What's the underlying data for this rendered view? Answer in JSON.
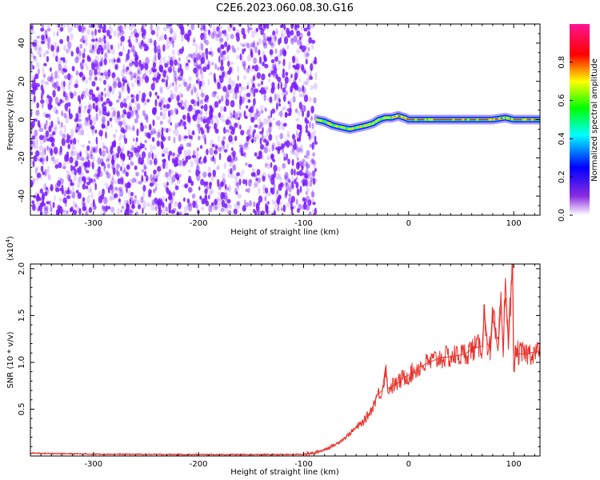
{
  "figure_title": "C2E6.2023.060.08.30.G16",
  "colors": {
    "spectrogram_points": "#7a1bff",
    "snr_line": "#e8332d",
    "axis": "#000000",
    "background": "#ffffff"
  },
  "chart_data": [
    {
      "type": "heatmap",
      "title": "C2E6.2023.060.08.30.G16",
      "xlabel": "Height of straight line (km)",
      "ylabel": "Frequency (Hz)",
      "xlim": [
        -360,
        125
      ],
      "ylim": [
        -50,
        50
      ],
      "xticks": [
        -300,
        -200,
        -100,
        0,
        100
      ],
      "yticks": [
        -40,
        -20,
        0,
        20,
        40
      ],
      "grid": false,
      "noise_region_x": [
        -360,
        -88
      ],
      "signal_trace": {
        "x": [
          -88,
          -80,
          -72,
          -64,
          -56,
          -48,
          -40,
          -34,
          -28,
          -22,
          -16,
          -10,
          -4,
          0,
          20,
          40,
          60,
          80,
          92,
          100,
          125
        ],
        "frequency_hz": [
          0,
          -1,
          -3,
          -4,
          -5,
          -4,
          -3,
          -2,
          0,
          1,
          1,
          2,
          1,
          0,
          0,
          0,
          0,
          0,
          1,
          0,
          0
        ]
      },
      "colorbar": {
        "label": "Normalized spectral amplitude",
        "range": [
          0.0,
          1.0
        ],
        "ticks": [
          "0.0",
          "0.2",
          "0.4",
          "0.6",
          "0.8"
        ],
        "colors": [
          "#ffffff",
          "#8a2be2",
          "#0000ff",
          "#00ffff",
          "#00ff00",
          "#ffff00",
          "#ff0000",
          "#ff1493"
        ]
      }
    },
    {
      "type": "line",
      "xlabel": "Height of straight line (km)",
      "ylabel": "SNR (10 * v/v)",
      "y_exponent_label": "(x10",
      "y_exponent_power": "4",
      "y_exponent_close": ")",
      "xlim": [
        -360,
        125
      ],
      "ylim": [
        0,
        20500
      ],
      "xticks": [
        -300,
        -200,
        -100,
        0,
        100
      ],
      "yticks": [
        5000,
        10000,
        15000,
        20000
      ],
      "ytick_labels": [
        "0.5",
        "1.0",
        "1.5",
        "2.0"
      ],
      "grid": false,
      "series": [
        {
          "x": [
            -360,
            -300,
            -200,
            -120,
            -100,
            -90,
            -80,
            -70,
            -60,
            -50,
            -42,
            -35,
            -30,
            -25,
            -22,
            -20,
            -15,
            -10,
            -5,
            0,
            10,
            20,
            30,
            40,
            50,
            55,
            60,
            65,
            70,
            72,
            75,
            78,
            80,
            85,
            88,
            90,
            92,
            95,
            97,
            99,
            100,
            102,
            105,
            110,
            115,
            120,
            125
          ],
          "values": [
            300,
            200,
            150,
            150,
            180,
            300,
            700,
            1200,
            2000,
            3000,
            3800,
            5000,
            6500,
            7000,
            9500,
            7200,
            7500,
            7800,
            8400,
            8600,
            9500,
            10000,
            10500,
            10600,
            10800,
            11000,
            11400,
            11600,
            11700,
            15500,
            12000,
            11300,
            15000,
            11200,
            16500,
            10800,
            19000,
            11600,
            17000,
            20500,
            9000,
            11200,
            10900,
            10900,
            11000,
            11100,
            11200
          ]
        }
      ]
    }
  ]
}
